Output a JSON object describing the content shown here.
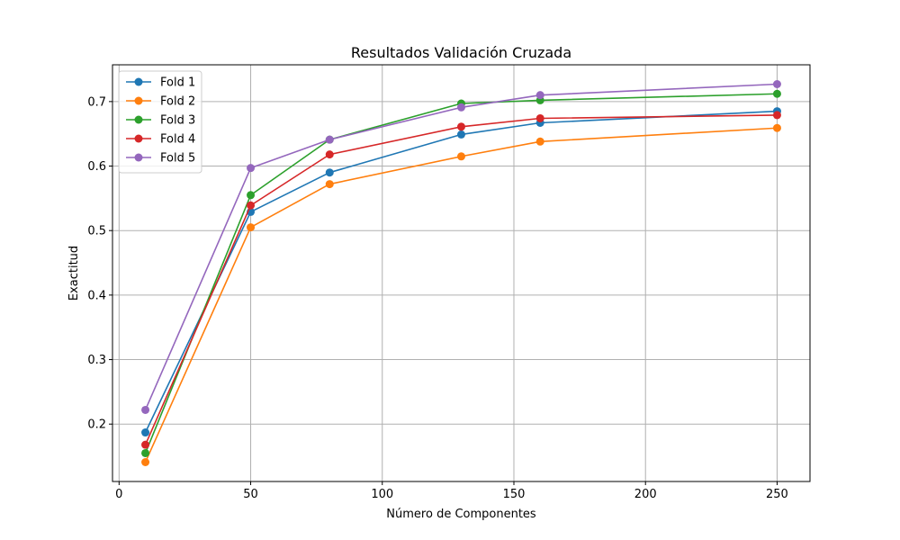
{
  "chart_data": {
    "type": "line",
    "title": "Resultados Validación Cruzada",
    "xlabel": "Número de Componentes",
    "ylabel": "Exactitud",
    "x": [
      10,
      50,
      80,
      130,
      160,
      250
    ],
    "xlim": [
      -2.5,
      262.5
    ],
    "ylim": [
      0.111,
      0.757
    ],
    "xticks": [
      0,
      50,
      100,
      150,
      200,
      250
    ],
    "xtick_labels": [
      "0",
      "50",
      "100",
      "150",
      "200",
      "250"
    ],
    "yticks": [
      0.2,
      0.3,
      0.4,
      0.5,
      0.6,
      0.7
    ],
    "ytick_labels": [
      "0.2",
      "0.3",
      "0.4",
      "0.5",
      "0.6",
      "0.7"
    ],
    "grid": true,
    "legend_position": "top-left",
    "series": [
      {
        "name": "Fold 1",
        "color": "#1f77b4",
        "values": [
          0.187,
          0.529,
          0.59,
          0.649,
          0.667,
          0.685
        ]
      },
      {
        "name": "Fold 2",
        "color": "#ff7f0e",
        "values": [
          0.141,
          0.505,
          0.572,
          0.615,
          0.638,
          0.659
        ]
      },
      {
        "name": "Fold 3",
        "color": "#2ca02c",
        "values": [
          0.155,
          0.555,
          0.641,
          0.697,
          0.702,
          0.712
        ]
      },
      {
        "name": "Fold 4",
        "color": "#d62728",
        "values": [
          0.168,
          0.539,
          0.618,
          0.661,
          0.674,
          0.679
        ]
      },
      {
        "name": "Fold 5",
        "color": "#9467bd",
        "values": [
          0.222,
          0.597,
          0.641,
          0.691,
          0.71,
          0.727
        ]
      }
    ]
  }
}
